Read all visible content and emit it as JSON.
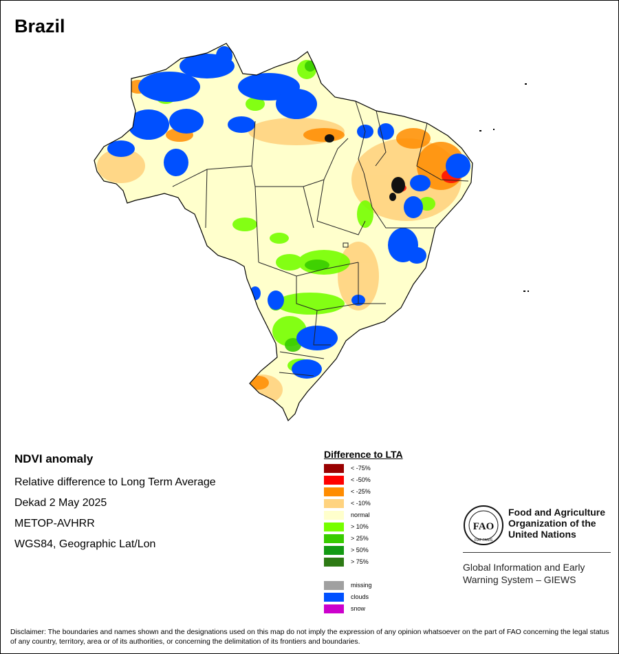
{
  "map": {
    "title": "Brazil"
  },
  "info": {
    "heading": "NDVI anomaly",
    "lines": [
      "Relative difference to Long Term Average",
      "Dekad 2 May 2025",
      "METOP-AVHRR",
      "WGS84, Geographic Lat/Lon"
    ]
  },
  "legend": {
    "title": "Difference to LTA",
    "classes": [
      {
        "label": "< -75%",
        "color": "#990000"
      },
      {
        "label": "< -50%",
        "color": "#ff0000"
      },
      {
        "label": "< -25%",
        "color": "#ff8c00"
      },
      {
        "label": "< -10%",
        "color": "#ffd37f"
      },
      {
        "label": "normal",
        "color": "#ffffcc"
      },
      {
        "label": "> 10%",
        "color": "#76ff00"
      },
      {
        "label": "> 25%",
        "color": "#38cc00"
      },
      {
        "label": "> 50%",
        "color": "#139a13"
      },
      {
        "label": "> 75%",
        "color": "#2d7a14"
      }
    ],
    "special": [
      {
        "label": "missing",
        "color": "#a0a0a0"
      },
      {
        "label": "clouds",
        "color": "#0050ff"
      },
      {
        "label": "snow",
        "color": "#cc00cc"
      }
    ]
  },
  "fao": {
    "logo_letters": "FAO",
    "logo_motto": "FIAT PANIS",
    "name_line1": "Food and Agriculture",
    "name_line2": "Organization of the",
    "name_line3": "United Nations",
    "giews_line1": "Global Information and Early",
    "giews_line2": "Warning System – GIEWS"
  },
  "disclaimer": "Disclaimer: The boundaries and names shown and the designations used on this map do not imply the expression of any opinion whatsoever on the part of FAO concerning the legal status of any country, territory, area or of its authorities, or concerning the delimitation of its frontiers and boundaries."
}
